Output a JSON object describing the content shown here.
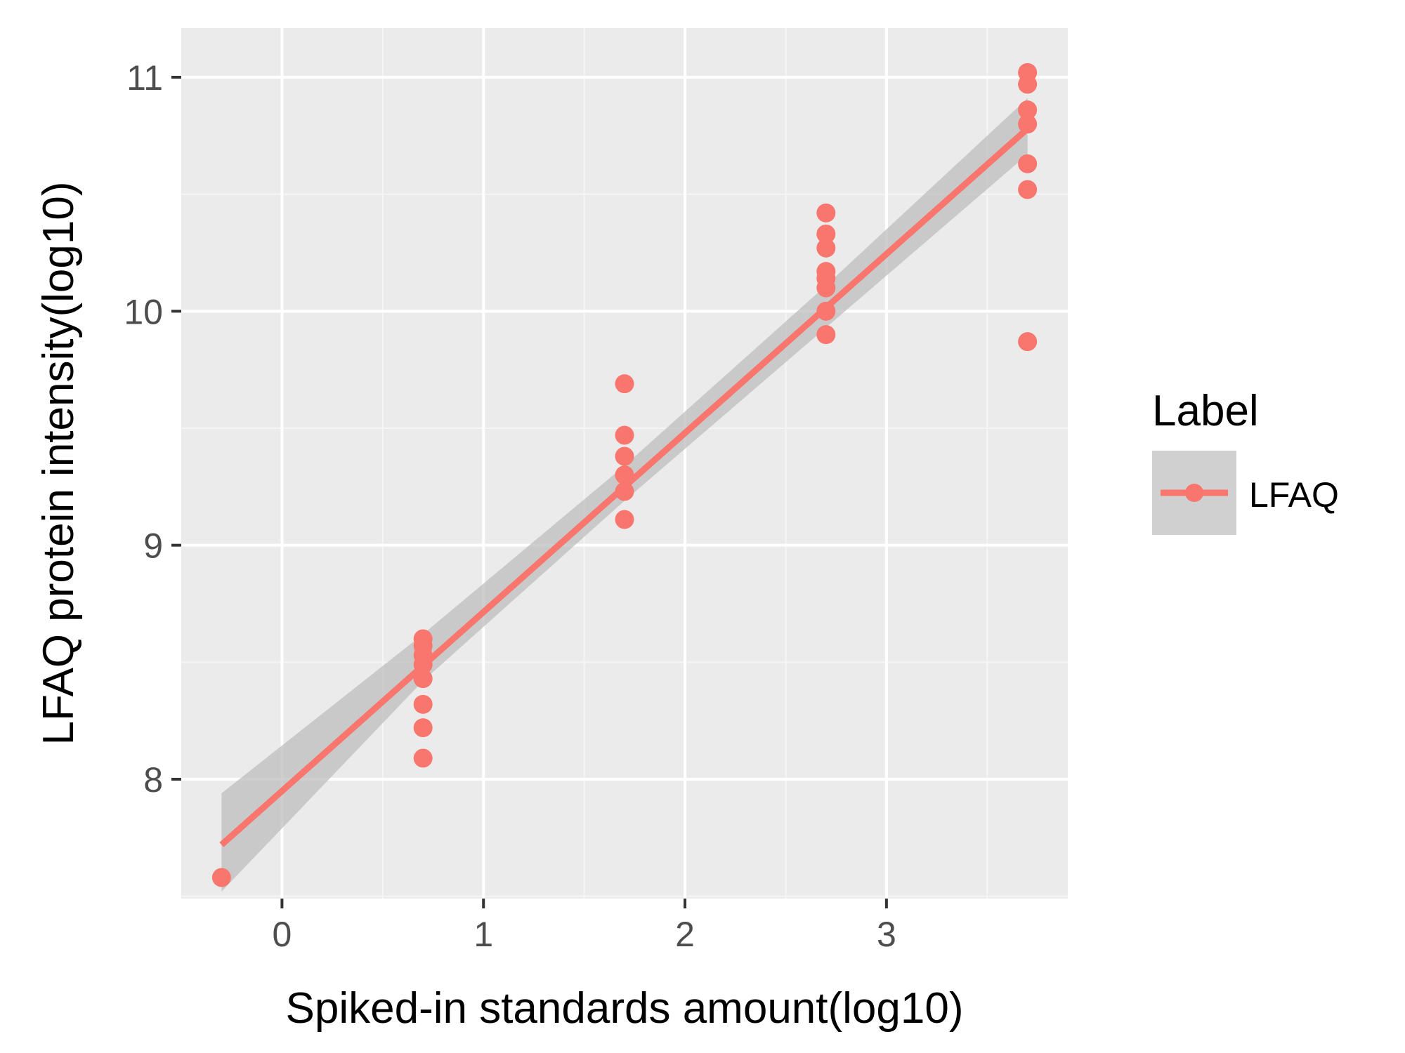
{
  "chart_data": {
    "type": "scatter",
    "title": "",
    "xlabel": "Spiked-in standards amount(log10)",
    "ylabel": "LFAQ protein intensity(log10)",
    "xlim": [
      -0.5,
      3.9
    ],
    "ylim": [
      7.49,
      11.21
    ],
    "x_ticks": [
      0,
      1,
      2,
      3
    ],
    "x_tick_labels": [
      "0",
      "1",
      "2",
      "3"
    ],
    "y_ticks": [
      8,
      9,
      10,
      11
    ],
    "y_tick_labels": [
      "8",
      "9",
      "10",
      "11"
    ],
    "grid": true,
    "legend": {
      "title": "Label",
      "placement": "right",
      "entries": [
        "LFAQ"
      ]
    },
    "series": [
      {
        "name": "LFAQ",
        "color": "#F8766D",
        "points": [
          [
            -0.3,
            7.58
          ],
          [
            0.7,
            8.6
          ],
          [
            0.7,
            8.57
          ],
          [
            0.7,
            8.53
          ],
          [
            0.7,
            8.49
          ],
          [
            0.7,
            8.43
          ],
          [
            0.7,
            8.32
          ],
          [
            0.7,
            8.22
          ],
          [
            0.7,
            8.09
          ],
          [
            1.7,
            9.69
          ],
          [
            1.7,
            9.47
          ],
          [
            1.7,
            9.38
          ],
          [
            1.7,
            9.3
          ],
          [
            1.7,
            9.23
          ],
          [
            1.7,
            9.11
          ],
          [
            2.7,
            10.42
          ],
          [
            2.7,
            10.33
          ],
          [
            2.7,
            10.27
          ],
          [
            2.7,
            10.17
          ],
          [
            2.7,
            10.14
          ],
          [
            2.7,
            10.1
          ],
          [
            2.7,
            10.0
          ],
          [
            2.7,
            9.9
          ],
          [
            3.7,
            11.02
          ],
          [
            3.7,
            10.97
          ],
          [
            3.7,
            10.86
          ],
          [
            3.7,
            10.8
          ],
          [
            3.7,
            10.63
          ],
          [
            3.7,
            10.52
          ],
          [
            3.7,
            9.87
          ]
        ],
        "fit": {
          "method": "linear",
          "x_range": [
            -0.3,
            3.7
          ],
          "y_range": [
            7.72,
            10.78
          ]
        },
        "confidence_band": {
          "x": [
            -0.3,
            0.7,
            1.7,
            2.7,
            3.7
          ],
          "lower": [
            7.52,
            8.42,
            9.19,
            9.93,
            10.67
          ],
          "upper": [
            7.94,
            8.62,
            9.34,
            10.11,
            10.91
          ]
        }
      }
    ]
  },
  "colors": {
    "panel_background": "#EBEBEB",
    "grid_major": "#FFFFFF",
    "grid_minor": "#F5F5F5",
    "band": "#BEBEBE",
    "series": "#F8766D"
  }
}
